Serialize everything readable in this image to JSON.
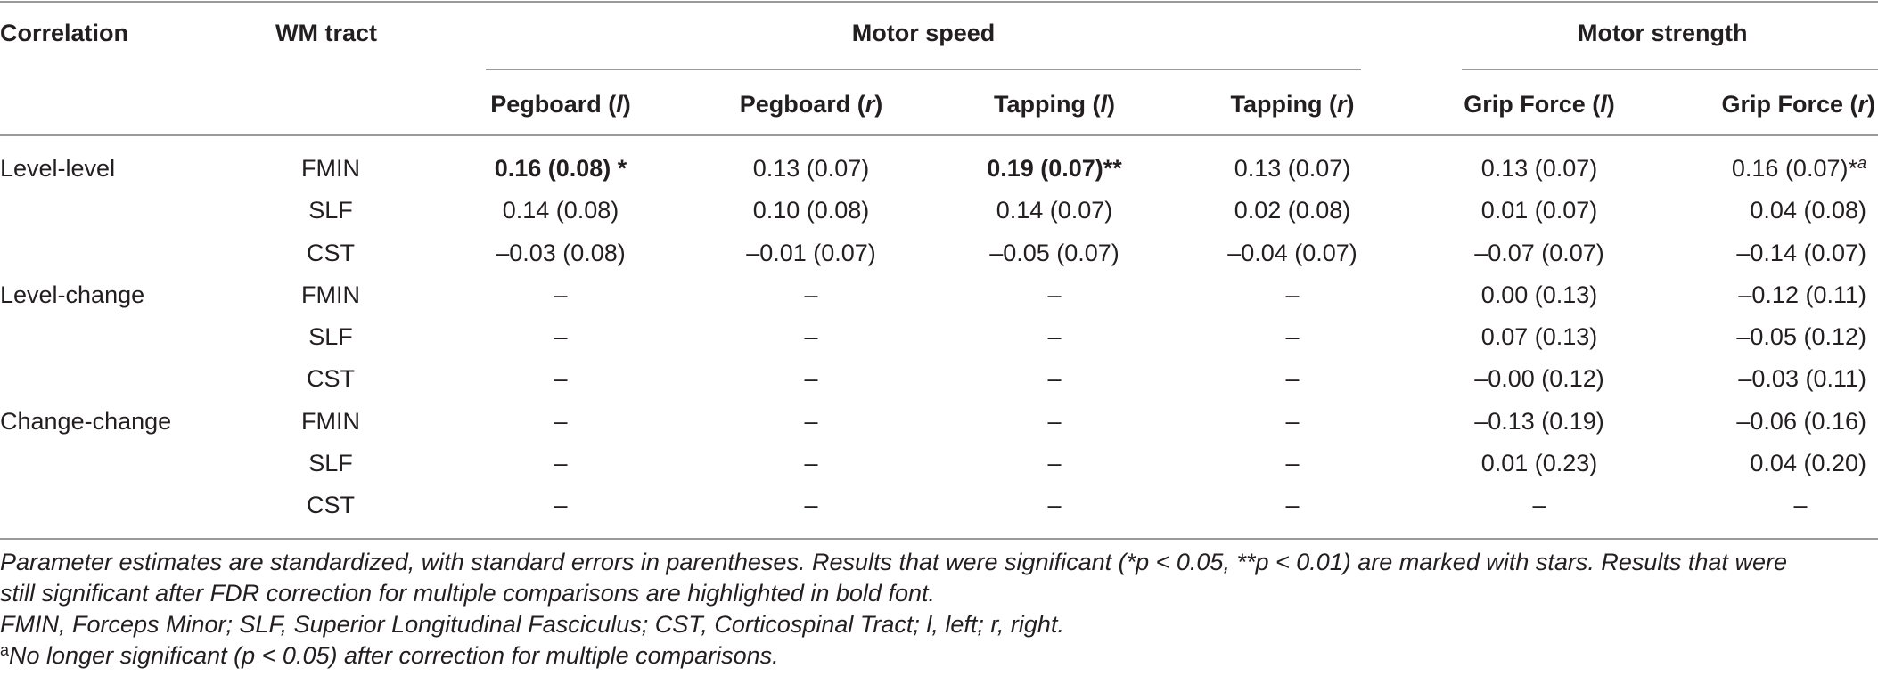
{
  "headers": {
    "correlation": "Correlation",
    "tract": "WM tract",
    "group_speed": "Motor speed",
    "group_strength": "Motor strength",
    "columns": [
      {
        "base": "Pegboard (",
        "side": "l",
        "close": ")"
      },
      {
        "base": "Pegboard (",
        "side": "r",
        "close": ")"
      },
      {
        "base": "Tapping (",
        "side": "l",
        "close": ")"
      },
      {
        "base": "Tapping (",
        "side": "r",
        "close": ")"
      },
      {
        "base": "Grip Force (",
        "side": "l",
        "close": ")"
      },
      {
        "base": "Grip Force (",
        "side": "r",
        "close": ")"
      }
    ]
  },
  "rows": [
    {
      "group": "Level-level",
      "tract": "FMIN",
      "cells": [
        "0.16 (0.08) *",
        "0.13 (0.07)",
        "0.19 (0.07)**",
        "0.13 (0.07)",
        "0.13 (0.07)",
        "0.16 (0.07)*"
      ],
      "sup": "a"
    },
    {
      "group": "",
      "tract": "SLF",
      "cells": [
        "0.14 (0.08)",
        "0.10 (0.08)",
        "0.14 (0.07)",
        "0.02 (0.08)",
        "0.01 (0.07)",
        "0.04 (0.08)"
      ]
    },
    {
      "group": "",
      "tract": "CST",
      "cells": [
        "–0.03 (0.08)",
        "–0.01 (0.07)",
        "–0.05 (0.07)",
        "–0.04 (0.07)",
        "–0.07 (0.07)",
        "–0.14 (0.07)"
      ]
    },
    {
      "group": "Level-change",
      "tract": "FMIN",
      "cells": [
        "–",
        "–",
        "–",
        "–",
        "0.00 (0.13)",
        "–0.12 (0.11)"
      ]
    },
    {
      "group": "",
      "tract": "SLF",
      "cells": [
        "–",
        "–",
        "–",
        "–",
        "0.07 (0.13)",
        "–0.05 (0.12)"
      ]
    },
    {
      "group": "",
      "tract": "CST",
      "cells": [
        "–",
        "–",
        "–",
        "–",
        "–0.00 (0.12)",
        "–0.03 (0.11)"
      ]
    },
    {
      "group": "Change-change",
      "tract": "FMIN",
      "cells": [
        "–",
        "–",
        "–",
        "–",
        "–0.13 (0.19)",
        "–0.06 (0.16)"
      ]
    },
    {
      "group": "",
      "tract": "SLF",
      "cells": [
        "–",
        "–",
        "–",
        "–",
        "0.01 (0.23)",
        "0.04 (0.20)"
      ]
    },
    {
      "group": "",
      "tract": "CST",
      "cells": [
        "–",
        "–",
        "–",
        "–",
        "–",
        "–"
      ]
    }
  ],
  "notes": {
    "line1": "Parameter estimates are standardized, with standard errors in parentheses. Results that were significant (*p < 0.05, **p < 0.01) are marked with stars. Results that were",
    "line2": "still significant after FDR correction for multiple comparisons are highlighted in bold font.",
    "line3": "FMIN, Forceps Minor; SLF, Superior Longitudinal Fasciculus; CST, Corticospinal Tract; l, left; r, right.",
    "footnote_mark": "a",
    "line4": "No longer significant (p < 0.05) after correction for multiple comparisons."
  }
}
